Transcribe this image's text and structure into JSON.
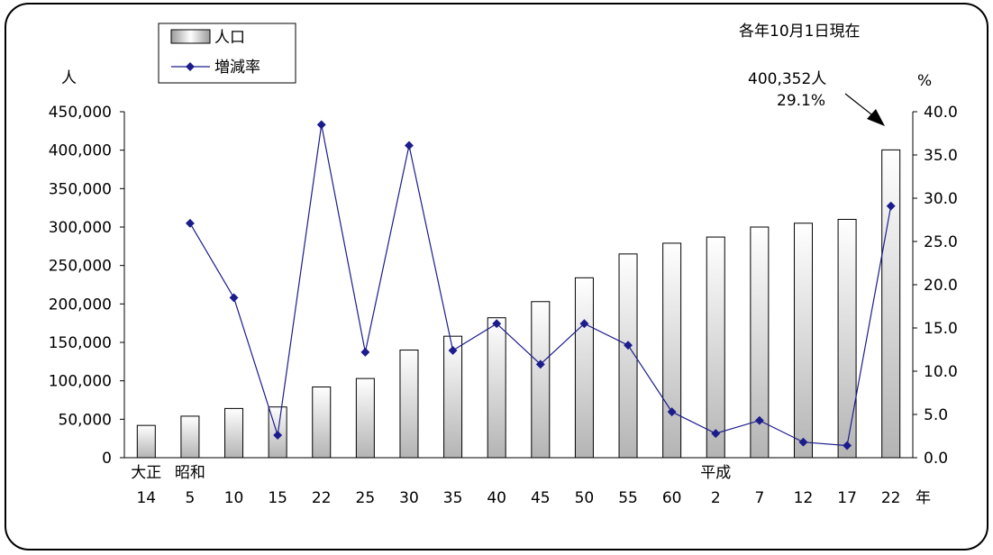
{
  "chart_data": {
    "type": "bar",
    "note": "各年10月1日現在",
    "categories": [
      "14",
      "5",
      "10",
      "15",
      "22",
      "25",
      "30",
      "35",
      "40",
      "45",
      "50",
      "55",
      "60",
      "2",
      "7",
      "12",
      "17",
      "22"
    ],
    "era_labels": [
      {
        "label": "大正",
        "category_index": 0
      },
      {
        "label": "昭和",
        "category_index": 1
      },
      {
        "label": "平成",
        "category_index": 13
      }
    ],
    "x_unit": "年",
    "y_left_label": "人",
    "y_right_label": "%",
    "y_left_ticks": [
      "0",
      "50,000",
      "100,000",
      "150,000",
      "200,000",
      "250,000",
      "300,000",
      "350,000",
      "400,000",
      "450,000"
    ],
    "y_right_ticks": [
      "0.0",
      "5.0",
      "10.0",
      "15.0",
      "20.0",
      "25.0",
      "30.0",
      "35.0",
      "40.0"
    ],
    "ylim_left": [
      0,
      450000
    ],
    "ylim_right": [
      0,
      40
    ],
    "series": [
      {
        "name": "人口",
        "kind": "bar",
        "axis": "left",
        "values": [
          42000,
          54000,
          64000,
          66000,
          92000,
          103000,
          140000,
          158000,
          182000,
          203000,
          234000,
          265000,
          279000,
          287000,
          300000,
          305000,
          310000,
          400352
        ]
      },
      {
        "name": "増減率",
        "kind": "line",
        "axis": "right",
        "values": [
          null,
          27.1,
          18.5,
          2.6,
          38.5,
          12.2,
          36.1,
          12.4,
          15.5,
          10.8,
          15.5,
          13.0,
          5.3,
          2.8,
          4.3,
          1.8,
          1.4,
          29.1
        ]
      }
    ],
    "annotation": {
      "population": "400,352人",
      "rate": "29.1%"
    },
    "legend_position": "top-left",
    "colors": {
      "line": "#1c1c8c",
      "bar_stroke": "#000000"
    }
  }
}
